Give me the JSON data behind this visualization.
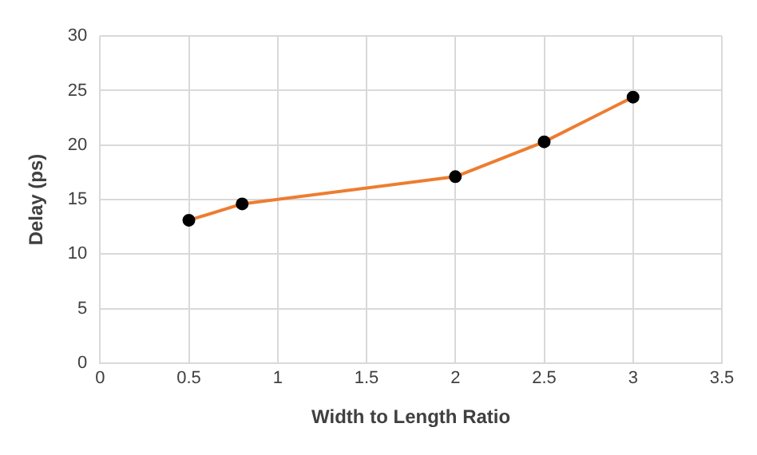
{
  "chart_data": {
    "type": "line",
    "xlabel": "Width to Length Ratio",
    "ylabel": "Delay (ps)",
    "x": [
      0.5,
      0.8,
      2,
      2.5,
      3
    ],
    "series": [
      {
        "color": "#ed7d31",
        "values": [
          13.1,
          14.6,
          17.1,
          20.3,
          24.4
        ]
      }
    ],
    "xlim": [
      0,
      3.5
    ],
    "xticks": [
      0,
      0.5,
      1,
      1.5,
      2,
      2.5,
      3,
      3.5
    ],
    "ylim": [
      0,
      30
    ],
    "yticks": [
      0,
      5,
      10,
      15,
      20,
      25,
      30
    ],
    "grid": true,
    "marker": "circle",
    "line_style": "solid",
    "legend": false
  }
}
